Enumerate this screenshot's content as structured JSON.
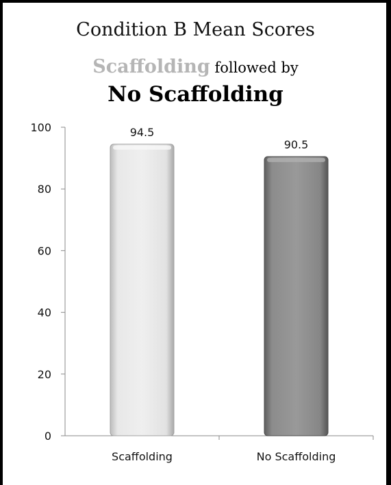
{
  "chart_data": {
    "type": "bar",
    "title": "Condition B Mean Scores",
    "subtitle_faded": "Scaffolding",
    "subtitle_rest": "followed by",
    "subtitle_line2": "No Scaffolding",
    "categories": [
      "Scaffolding",
      "No Scaffolding"
    ],
    "values": [
      94.5,
      90.5
    ],
    "data_labels": [
      "94.5",
      "90.5"
    ],
    "bar_colors": [
      "#e3e3e3",
      "#8a8a8a"
    ],
    "ylim": [
      0,
      100
    ],
    "yticks": [
      0,
      20,
      40,
      60,
      80,
      100
    ],
    "grid": false,
    "legend": "none",
    "xlabel": "",
    "ylabel": ""
  }
}
